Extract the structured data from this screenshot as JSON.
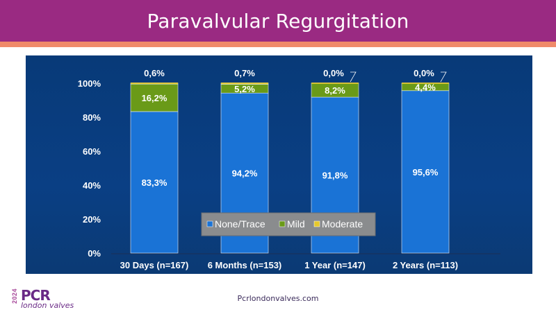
{
  "title": "Paravalvular Regurgitation",
  "footer": {
    "url": "Pcrlondonvalves.com"
  },
  "logo": {
    "year": "2024",
    "brand": "PCR",
    "sub": "london valves"
  },
  "colors": {
    "none_trace": "#1a73d6",
    "mild": "#6a9a18",
    "moderate": "#e6c82a",
    "header": "#9a2a82"
  },
  "chart_data": {
    "type": "bar",
    "stacked": true,
    "categories": [
      "30 Days (n=167)",
      "6 Months (n=153)",
      "1 Year (n=147)",
      "2 Years (n=113)"
    ],
    "series": [
      {
        "name": "None/Trace",
        "values": [
          83.3,
          94.2,
          91.8,
          95.6
        ],
        "labels": [
          "83,3%",
          "94,2%",
          "91,8%",
          "95,6%"
        ]
      },
      {
        "name": "Mild",
        "values": [
          16.2,
          5.2,
          8.2,
          4.4
        ],
        "labels": [
          "16,2%",
          "5,2%",
          "8,2%",
          "4,4%"
        ]
      },
      {
        "name": "Moderate",
        "values": [
          0.6,
          0.7,
          0.0,
          0.0
        ],
        "labels": [
          "0,6%",
          "0,7%",
          "0,0%",
          "0,0%"
        ]
      }
    ],
    "yticks": [
      "0%",
      "20%",
      "40%",
      "60%",
      "80%",
      "100%"
    ],
    "ylim": [
      0,
      100
    ],
    "legend": [
      "None/Trace",
      "Mild",
      "Moderate"
    ]
  }
}
